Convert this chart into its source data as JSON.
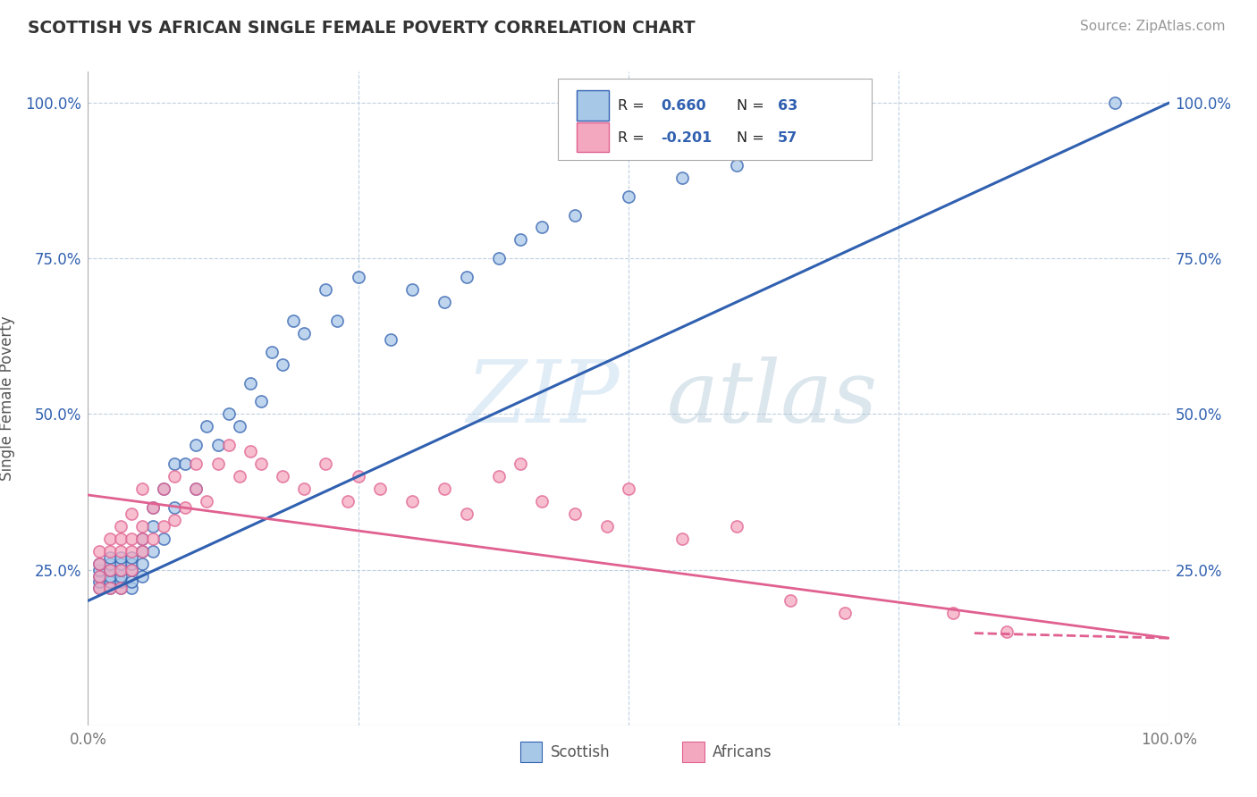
{
  "title": "SCOTTISH VS AFRICAN SINGLE FEMALE POVERTY CORRELATION CHART",
  "source": "Source: ZipAtlas.com",
  "ylabel": "Single Female Poverty",
  "xlim": [
    0.0,
    1.0
  ],
  "ylim": [
    0.0,
    1.05
  ],
  "scatter_color_scottish": "#a8c8e8",
  "scatter_color_african": "#f4a8c0",
  "line_color_scottish": "#3060b0",
  "line_color_african": "#e06090",
  "R_scottish": 0.66,
  "N_scottish": 63,
  "R_african": -0.201,
  "N_african": 57,
  "background_color": "#ffffff",
  "grid_color": "#c0d0e0",
  "scottish_x": [
    0.01,
    0.01,
    0.01,
    0.01,
    0.01,
    0.02,
    0.02,
    0.02,
    0.02,
    0.02,
    0.02,
    0.03,
    0.03,
    0.03,
    0.03,
    0.03,
    0.03,
    0.04,
    0.04,
    0.04,
    0.04,
    0.04,
    0.05,
    0.05,
    0.05,
    0.05,
    0.06,
    0.06,
    0.06,
    0.07,
    0.07,
    0.08,
    0.08,
    0.09,
    0.1,
    0.1,
    0.11,
    0.12,
    0.13,
    0.14,
    0.15,
    0.16,
    0.17,
    0.18,
    0.19,
    0.2,
    0.22,
    0.23,
    0.25,
    0.28,
    0.3,
    0.33,
    0.35,
    0.38,
    0.4,
    0.42,
    0.45,
    0.5,
    0.55,
    0.6,
    0.65,
    0.7,
    0.95
  ],
  "scottish_y": [
    0.22,
    0.23,
    0.24,
    0.25,
    0.26,
    0.22,
    0.23,
    0.24,
    0.25,
    0.26,
    0.27,
    0.22,
    0.23,
    0.24,
    0.25,
    0.26,
    0.27,
    0.22,
    0.23,
    0.25,
    0.26,
    0.27,
    0.24,
    0.26,
    0.28,
    0.3,
    0.28,
    0.32,
    0.35,
    0.3,
    0.38,
    0.35,
    0.42,
    0.42,
    0.38,
    0.45,
    0.48,
    0.45,
    0.5,
    0.48,
    0.55,
    0.52,
    0.6,
    0.58,
    0.65,
    0.63,
    0.7,
    0.65,
    0.72,
    0.62,
    0.7,
    0.68,
    0.72,
    0.75,
    0.78,
    0.8,
    0.82,
    0.85,
    0.88,
    0.9,
    0.92,
    0.95,
    1.0
  ],
  "african_x": [
    0.01,
    0.01,
    0.01,
    0.01,
    0.02,
    0.02,
    0.02,
    0.02,
    0.03,
    0.03,
    0.03,
    0.03,
    0.03,
    0.04,
    0.04,
    0.04,
    0.04,
    0.05,
    0.05,
    0.05,
    0.05,
    0.06,
    0.06,
    0.07,
    0.07,
    0.08,
    0.08,
    0.09,
    0.1,
    0.1,
    0.11,
    0.12,
    0.13,
    0.14,
    0.15,
    0.16,
    0.18,
    0.2,
    0.22,
    0.24,
    0.25,
    0.27,
    0.3,
    0.33,
    0.35,
    0.38,
    0.4,
    0.42,
    0.45,
    0.48,
    0.5,
    0.55,
    0.6,
    0.65,
    0.7,
    0.8,
    0.85
  ],
  "african_y": [
    0.22,
    0.24,
    0.26,
    0.28,
    0.22,
    0.25,
    0.28,
    0.3,
    0.22,
    0.25,
    0.28,
    0.3,
    0.32,
    0.25,
    0.28,
    0.3,
    0.34,
    0.28,
    0.3,
    0.32,
    0.38,
    0.3,
    0.35,
    0.32,
    0.38,
    0.33,
    0.4,
    0.35,
    0.38,
    0.42,
    0.36,
    0.42,
    0.45,
    0.4,
    0.44,
    0.42,
    0.4,
    0.38,
    0.42,
    0.36,
    0.4,
    0.38,
    0.36,
    0.38,
    0.34,
    0.4,
    0.42,
    0.36,
    0.34,
    0.32,
    0.38,
    0.3,
    0.32,
    0.2,
    0.18,
    0.18,
    0.15
  ],
  "sc_line_x0": 0.0,
  "sc_line_y0": 0.2,
  "sc_line_x1": 1.0,
  "sc_line_y1": 1.0,
  "af_line_x0": 0.0,
  "af_line_y0": 0.37,
  "af_line_x1": 1.0,
  "af_line_y1": 0.14
}
